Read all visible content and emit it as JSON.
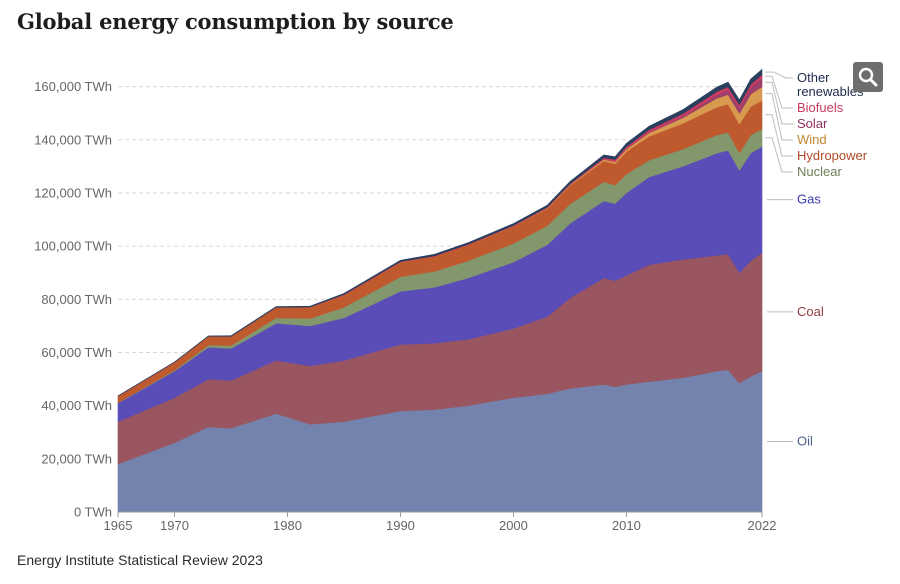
{
  "page": {
    "title": "Global energy consumption by source",
    "source": "Energy Institute Statistical Review 2023",
    "zoom_icon": "magnifier-icon"
  },
  "chart_data": {
    "type": "area",
    "stacked": true,
    "title": "Global energy consumption by source",
    "xlabel": "",
    "ylabel": "",
    "ylim": [
      0,
      170000
    ],
    "xlim": [
      1965,
      2022
    ],
    "yticks": [
      0,
      20000,
      40000,
      60000,
      80000,
      100000,
      120000,
      140000,
      160000
    ],
    "ytick_labels": [
      "0 TWh",
      "20,000 TWh",
      "40,000 TWh",
      "60,000 TWh",
      "80,000 TWh",
      "100,000 TWh",
      "120,000 TWh",
      "140,000 TWh",
      "160,000 TWh"
    ],
    "xticks": [
      1965,
      1970,
      1980,
      1990,
      2000,
      2010,
      2022
    ],
    "xtick_labels": [
      "1965",
      "1970",
      "1980",
      "1990",
      "2000",
      "2010",
      "2022"
    ],
    "grid": true,
    "x": [
      1965,
      1970,
      1973,
      1975,
      1979,
      1982,
      1985,
      1990,
      1993,
      1996,
      2000,
      2003,
      2005,
      2008,
      2009,
      2010,
      2012,
      2015,
      2018,
      2019,
      2020,
      2021,
      2022
    ],
    "series": [
      {
        "name": "Oil",
        "color": "#7483ad",
        "values": [
          18000,
          26000,
          32000,
          31500,
          37000,
          33000,
          34000,
          38000,
          38500,
          40000,
          43000,
          44500,
          46500,
          48000,
          47000,
          48000,
          49000,
          50500,
          53000,
          53500,
          48500,
          51000,
          53000
        ]
      },
      {
        "name": "Coal",
        "color": "#995660",
        "values": [
          16000,
          17000,
          18000,
          18000,
          20000,
          22000,
          23000,
          25000,
          25000,
          25000,
          26000,
          29000,
          34000,
          40000,
          40000,
          41000,
          44000,
          44500,
          43500,
          43500,
          41500,
          43500,
          44500
        ]
      },
      {
        "name": "Gas",
        "color": "#5a4db8",
        "values": [
          7000,
          10000,
          12000,
          12000,
          14000,
          15000,
          16000,
          20000,
          21000,
          23000,
          25000,
          27000,
          28000,
          29000,
          29000,
          31000,
          33000,
          35000,
          38500,
          39000,
          38500,
          40500,
          40000
        ]
      },
      {
        "name": "Nuclear",
        "color": "#82976c",
        "values": [
          100,
          300,
          800,
          1100,
          2000,
          2800,
          4000,
          5500,
          6000,
          6500,
          7000,
          7200,
          7300,
          7200,
          7000,
          7100,
          6300,
          6500,
          6800,
          6800,
          6600,
          6800,
          6500
        ]
      },
      {
        "name": "Hydropower",
        "color": "#bf5a2e",
        "values": [
          2500,
          3000,
          3300,
          3500,
          4000,
          4300,
          4700,
          5500,
          5700,
          6000,
          6500,
          6500,
          7000,
          7800,
          8000,
          8500,
          9000,
          9700,
          10500,
          10600,
          10800,
          10700,
          10800
        ]
      },
      {
        "name": "Wind",
        "color": "#d89a4e",
        "values": [
          0,
          0,
          0,
          0,
          0,
          0,
          0,
          10,
          20,
          30,
          80,
          200,
          300,
          600,
          750,
          900,
          1300,
          2100,
          3300,
          3600,
          4000,
          4600,
          5100
        ]
      },
      {
        "name": "Solar",
        "color": "#9c3f6a",
        "values": [
          0,
          0,
          0,
          0,
          0,
          0,
          0,
          0,
          0,
          0,
          0,
          10,
          20,
          60,
          80,
          120,
          300,
          600,
          1400,
          1800,
          2200,
          2700,
          3400
        ]
      },
      {
        "name": "Biofuels",
        "color": "#cf3a61",
        "values": [
          0,
          0,
          0,
          0,
          0,
          0,
          100,
          150,
          150,
          200,
          200,
          250,
          300,
          600,
          700,
          800,
          850,
          950,
          1100,
          1100,
          1050,
          1100,
          1150
        ]
      },
      {
        "name": "Other renewables",
        "color": "#2a3f5e",
        "values": [
          50,
          100,
          150,
          200,
          250,
          300,
          400,
          500,
          550,
          600,
          700,
          750,
          850,
          1000,
          1100,
          1200,
          1300,
          1500,
          1700,
          1800,
          1850,
          1900,
          2000
        ]
      }
    ],
    "legend": [
      {
        "label": "Other",
        "series": "Other renewables",
        "color": "#1f2b4f"
      },
      {
        "label": "renewables",
        "series": "Other renewables",
        "color": "#1f2b4f"
      },
      {
        "label": "Biofuels",
        "series": "Biofuels",
        "color": "#c93a60"
      },
      {
        "label": "Solar",
        "series": "Solar",
        "color": "#8f2f60"
      },
      {
        "label": "Wind",
        "series": "Wind",
        "color": "#c2862e"
      },
      {
        "label": "Hydropower",
        "series": "Hydropower",
        "color": "#b24a26"
      },
      {
        "label": "Nuclear",
        "series": "Nuclear",
        "color": "#6d7f57"
      },
      {
        "label": "Gas",
        "series": "Gas",
        "color": "#3b3cb0"
      },
      {
        "label": "Coal",
        "series": "Coal",
        "color": "#8f3a3f"
      },
      {
        "label": "Oil",
        "series": "Oil",
        "color": "#4f6190"
      }
    ],
    "legend_placement": "right"
  }
}
